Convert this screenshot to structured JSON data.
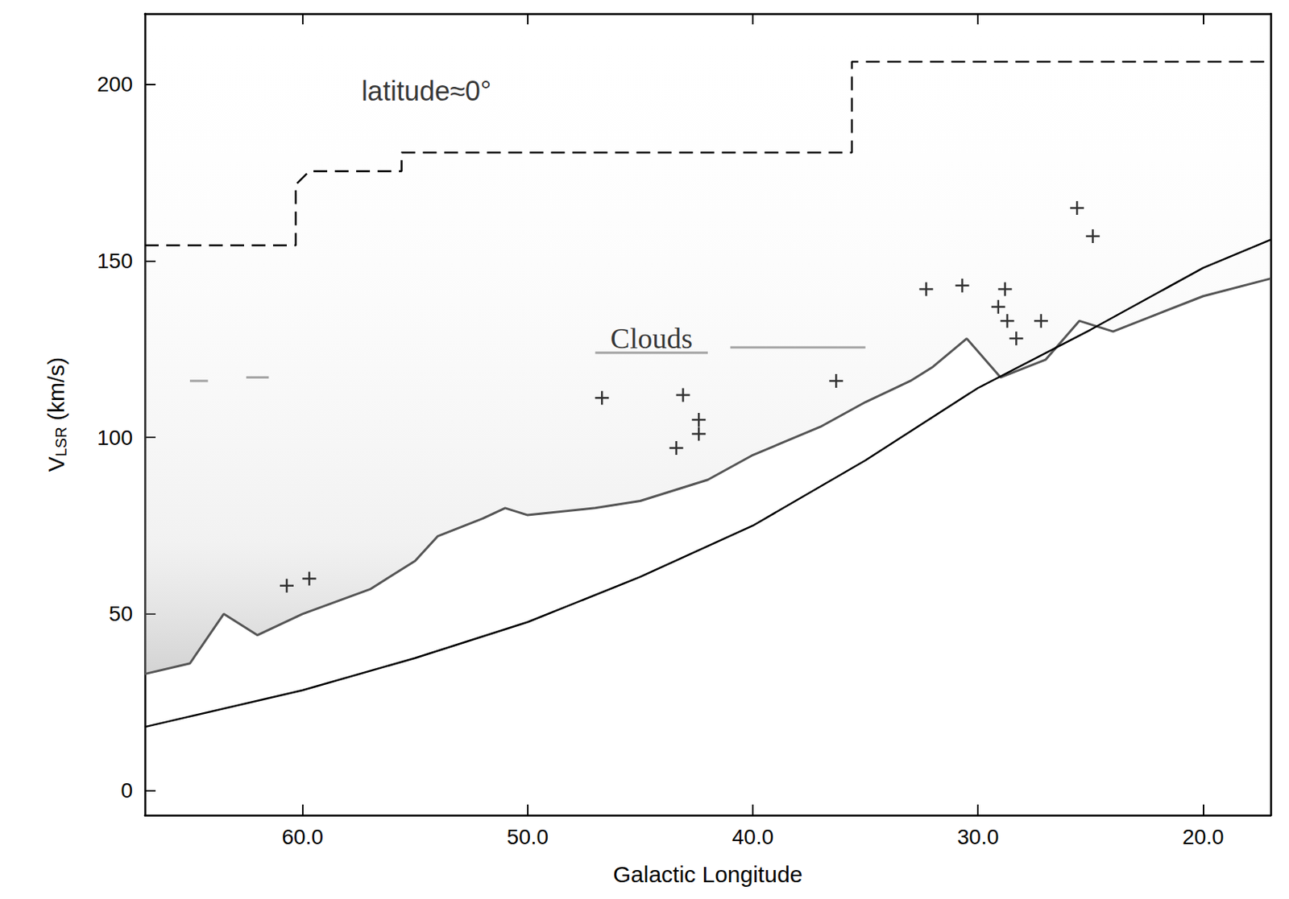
{
  "chart_data": {
    "type": "line",
    "xlabel": "Galactic Longitude",
    "ylabel": {
      "text": "V",
      "sub": "LSR",
      "unit": " (km/s)"
    },
    "xlim": [
      67,
      17
    ],
    "xticks": [
      {
        "value": 60,
        "label": "60.0"
      },
      {
        "value": 50,
        "label": "50.0"
      },
      {
        "value": 40,
        "label": "40.0"
      },
      {
        "value": 30,
        "label": "30.0"
      },
      {
        "value": 20,
        "label": "20.0"
      }
    ],
    "ylim": [
      -7,
      220
    ],
    "yticks": [
      0,
      50,
      100,
      150,
      200
    ],
    "grid": false,
    "annotations": [
      {
        "text": "latitude≈0°",
        "x": 54.5,
        "y": 198,
        "font": "sans"
      },
      {
        "text": "Clouds",
        "x": 44.5,
        "y": 128,
        "font": "serif"
      }
    ],
    "series": [
      {
        "type": "area",
        "color": "#555555",
        "line_style": "solid",
        "values": [
          [
            67,
            33
          ],
          [
            65,
            36
          ],
          [
            63.5,
            50
          ],
          [
            62,
            44
          ],
          [
            60,
            50
          ],
          [
            57,
            57
          ],
          [
            55,
            65
          ],
          [
            54,
            72
          ],
          [
            52,
            77
          ],
          [
            51,
            80
          ],
          [
            50,
            78
          ],
          [
            47,
            80
          ],
          [
            45,
            82
          ],
          [
            42,
            88
          ],
          [
            40,
            95
          ],
          [
            37,
            103
          ],
          [
            35,
            110
          ],
          [
            33,
            116
          ],
          [
            32,
            120
          ],
          [
            30.5,
            128
          ],
          [
            29,
            117
          ],
          [
            27,
            122
          ],
          [
            25.5,
            133
          ],
          [
            24,
            130
          ],
          [
            22,
            135
          ],
          [
            20,
            140
          ],
          [
            17,
            145
          ]
        ]
      },
      {
        "type": "line",
        "color": "#999999",
        "line_style": "solid",
        "values": [
          [
            65,
            116
          ],
          [
            64.2,
            116
          ]
        ]
      },
      {
        "type": "line",
        "color": "#999999",
        "line_style": "solid",
        "values": [
          [
            62.5,
            117
          ],
          [
            61.5,
            117
          ]
        ]
      },
      {
        "type": "line",
        "color": "#999999",
        "line_style": "solid",
        "values": [
          [
            47,
            124
          ],
          [
            42,
            124
          ]
        ]
      },
      {
        "type": "line",
        "color": "#999999",
        "line_style": "solid",
        "values": [
          [
            41,
            125.5
          ],
          [
            35,
            125.5
          ]
        ]
      },
      {
        "type": "line",
        "color": "#000000",
        "line_style": "solid",
        "values": [
          [
            67,
            18
          ],
          [
            60,
            28.4
          ],
          [
            55,
            37.5
          ],
          [
            50,
            47.7
          ],
          [
            45,
            60.5
          ],
          [
            40,
            75
          ],
          [
            35,
            93.5
          ],
          [
            30,
            114
          ],
          [
            25,
            130.5
          ],
          [
            20,
            148
          ],
          [
            17,
            156
          ]
        ]
      },
      {
        "type": "line",
        "color": "#000000",
        "line_style": "dashed",
        "values": [
          [
            67,
            154.4
          ],
          [
            60.3,
            154.4
          ],
          [
            60.3,
            171.6
          ],
          [
            59.7,
            175.4
          ],
          [
            55.6,
            175.4
          ],
          [
            55.6,
            180.7
          ],
          [
            35.6,
            180.7
          ],
          [
            35.6,
            206.4
          ],
          [
            17,
            206.4
          ]
        ]
      },
      {
        "type": "scatter",
        "color": "#000000",
        "marker": "cross",
        "values": [
          [
            60.7,
            58
          ],
          [
            59.7,
            60
          ],
          [
            46.7,
            111.2
          ],
          [
            43.1,
            112
          ],
          [
            43.4,
            97
          ],
          [
            42.4,
            105
          ],
          [
            42.4,
            101
          ],
          [
            36.3,
            116
          ],
          [
            32.3,
            142
          ],
          [
            30.7,
            143
          ],
          [
            29.1,
            137
          ],
          [
            28.8,
            142
          ],
          [
            28.7,
            133
          ],
          [
            28.3,
            128
          ],
          [
            27.2,
            133
          ],
          [
            25.6,
            165
          ],
          [
            24.9,
            157
          ]
        ]
      }
    ]
  }
}
